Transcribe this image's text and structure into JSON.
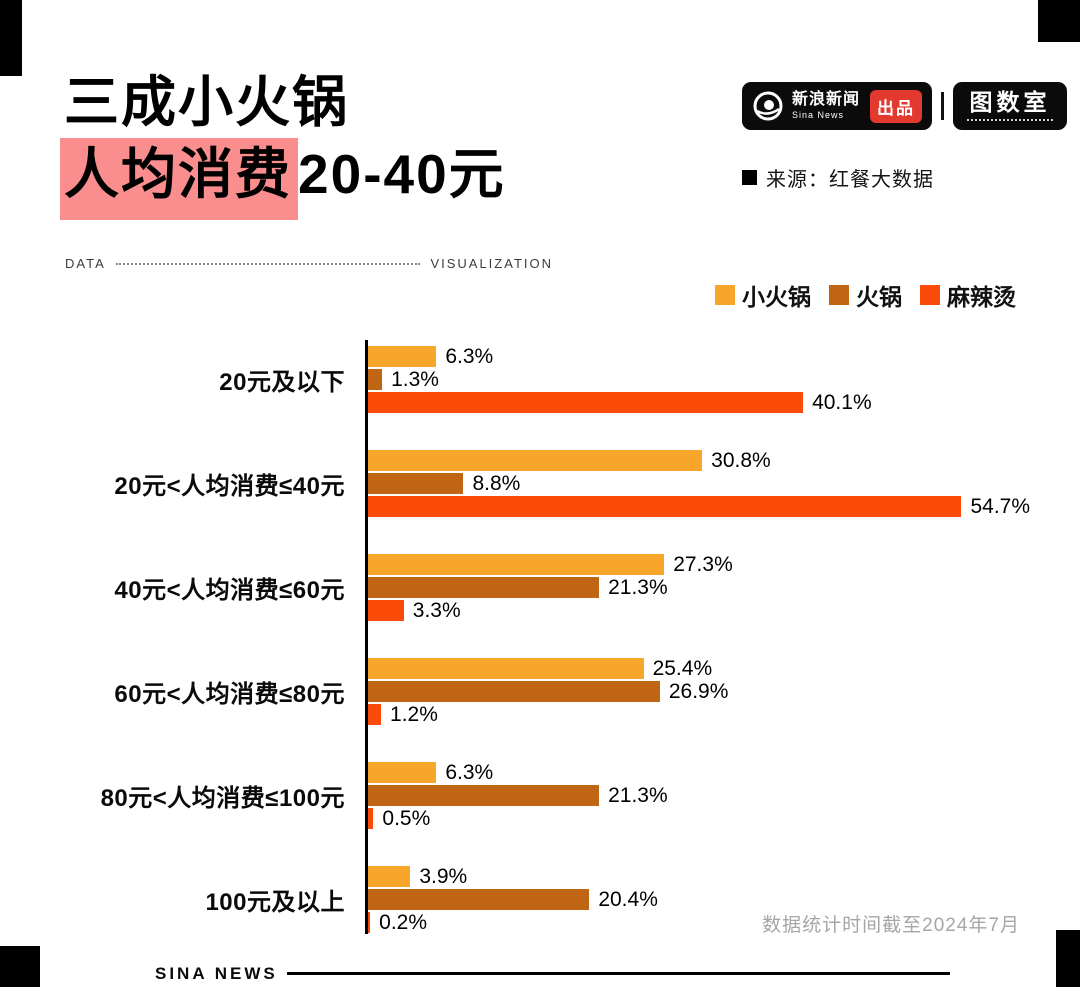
{
  "header": {
    "title_line1": "三成小火锅",
    "title_highlight": "人均消费",
    "title_rest": "20-40元",
    "source": "来源：红餐大数据"
  },
  "brand": {
    "sina_cn": "新浪新闻",
    "sina_en": "Sina News",
    "badge": "出品",
    "pictorial": "图数室"
  },
  "divider": {
    "left": "DATA",
    "right": "VISUALIZATION"
  },
  "colors": {
    "highlight_pink": "#FA8E8E",
    "badge_red": "#E23A2E",
    "small_hotpot": "#F7A62B",
    "hotpot": "#C06514",
    "malatang": "#FB4B08"
  },
  "legend": [
    {
      "key": "small-hotpot",
      "label": "小火锅",
      "color": "#F7A62B"
    },
    {
      "key": "hotpot",
      "label": "火锅",
      "color": "#C06514"
    },
    {
      "key": "malatang",
      "label": "麻辣烫",
      "color": "#FB4B08"
    }
  ],
  "chart_data": {
    "type": "bar",
    "orientation": "horizontal",
    "value_suffix": "%",
    "xlim": [
      0,
      55
    ],
    "grid": false,
    "legend_position": "top-right",
    "categories": [
      "20元及以下",
      "20元<人均消费≤40元",
      "40元<人均消费≤60元",
      "60元<人均消费≤80元",
      "80元<人均消费≤100元",
      "100元及以上"
    ],
    "series": [
      {
        "key": "small-hotpot",
        "name": "小火锅",
        "color": "#F7A62B",
        "values": [
          6.3,
          30.8,
          27.3,
          25.4,
          6.3,
          3.9
        ]
      },
      {
        "key": "hotpot",
        "name": "火锅",
        "color": "#C06514",
        "values": [
          1.3,
          8.8,
          21.3,
          26.9,
          21.3,
          20.4
        ]
      },
      {
        "key": "malatang",
        "name": "麻辣烫",
        "color": "#FB4B08",
        "values": [
          40.1,
          54.7,
          3.3,
          1.2,
          0.5,
          0.2
        ]
      }
    ]
  },
  "footer": {
    "note": "数据统计时间截至2024年7月",
    "brand": "SINA NEWS"
  }
}
